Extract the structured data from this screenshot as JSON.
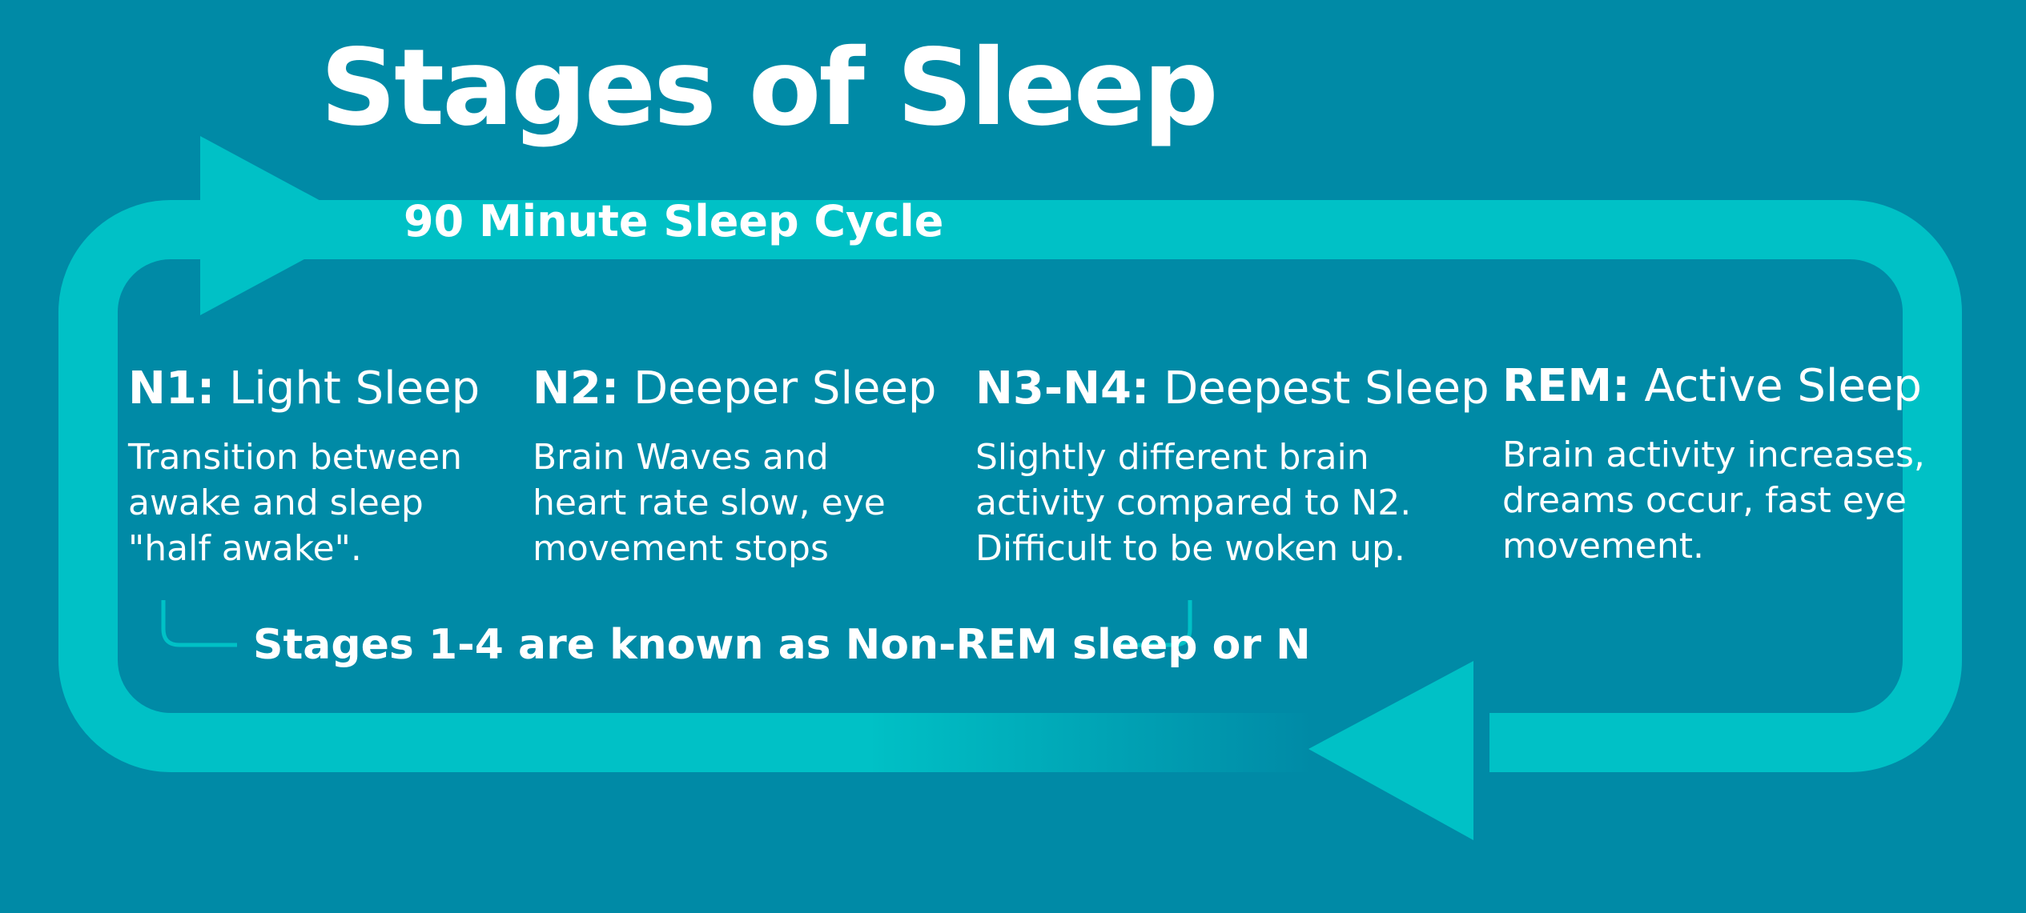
{
  "title": "Stages of Sleep",
  "cycle_label": "90 Minute Sleep Cycle",
  "stages": [
    {
      "code": "N1:",
      "name": "Light Sleep",
      "description": "Transition between\nawake and sleep\n\"half awake\"."
    },
    {
      "code": "N2:",
      "name": "Deeper Sleep",
      "description": "Brain Waves and\nheart rate slow, eye\nmovement stops"
    },
    {
      "code": "N3-N4:",
      "name": "Deepest Sleep",
      "description": "Slightly different brain\nactivity compared to N2.\nDifficult to be woken up."
    },
    {
      "code": "REM:",
      "name": "Active Sleep",
      "description": "Brain activity increases,\ndreams occur, fast eye\nmovement."
    }
  ],
  "nonrem_note": "Stages 1-4 are known as Non-REM sleep or N",
  "colors": {
    "background": "#008aa6",
    "loop": "#00c1c6",
    "text": "#ffffff"
  }
}
